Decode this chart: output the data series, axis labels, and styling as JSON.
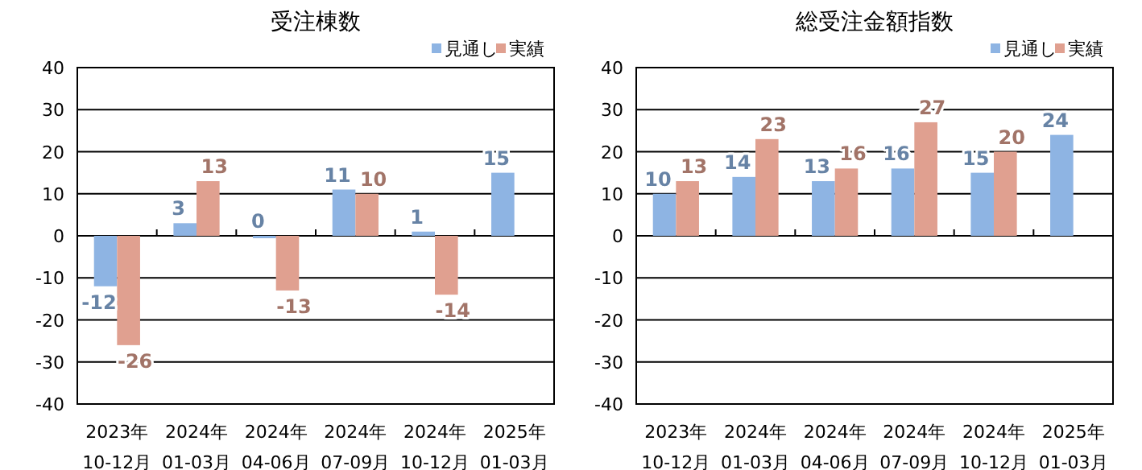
{
  "chart_data": [
    {
      "type": "bar",
      "title": "受注棟数",
      "categories": [
        "2023年\n10-12月",
        "2024年\n01-03月",
        "2024年\n04-06月",
        "2024年\n07-09月",
        "2024年\n10-12月",
        "2025年\n01-03月"
      ],
      "series": [
        {
          "name": "見通し",
          "color": "#8eb4e3",
          "values": [
            -12,
            3,
            0,
            11,
            1,
            15
          ]
        },
        {
          "name": "実績",
          "color": "#e0a090",
          "values": [
            -26,
            13,
            -13,
            10,
            -14,
            null
          ]
        }
      ],
      "ylim": [
        -40,
        40
      ],
      "yticks": [
        -40,
        -30,
        -20,
        -10,
        0,
        10,
        20,
        30,
        40
      ],
      "grid": "y",
      "legend": "top right",
      "data_labels": true
    },
    {
      "type": "bar",
      "title": "総受注金額指数",
      "categories": [
        "2023年\n10-12月",
        "2024年\n01-03月",
        "2024年\n04-06月",
        "2024年\n07-09月",
        "2024年\n10-12月",
        "2025年\n01-03月"
      ],
      "series": [
        {
          "name": "見通し",
          "color": "#8eb4e3",
          "values": [
            10,
            14,
            13,
            16,
            15,
            24
          ]
        },
        {
          "name": "実績",
          "color": "#e0a090",
          "values": [
            13,
            23,
            16,
            27,
            20,
            null
          ]
        }
      ],
      "ylim": [
        -40,
        40
      ],
      "yticks": [
        -40,
        -30,
        -20,
        -10,
        0,
        10,
        20,
        30,
        40
      ],
      "grid": "y",
      "legend": "top right",
      "data_labels": true
    }
  ]
}
